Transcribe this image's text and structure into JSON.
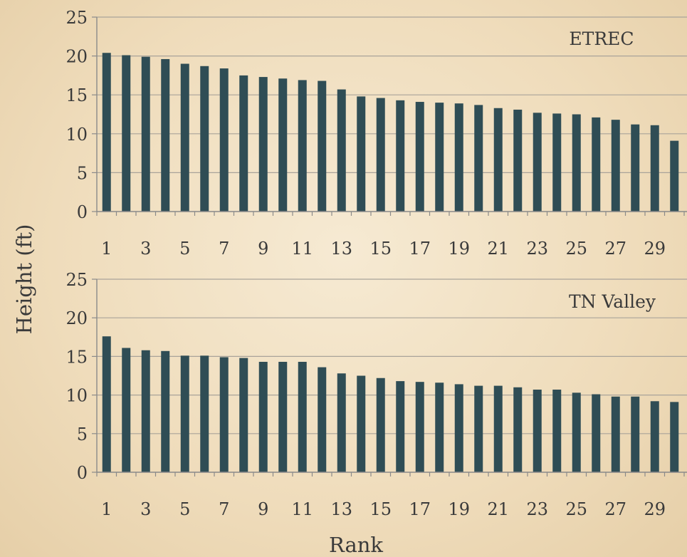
{
  "chart_data": [
    {
      "type": "bar",
      "annotation": "ETREC",
      "categories": [
        1,
        2,
        3,
        4,
        5,
        6,
        7,
        8,
        9,
        10,
        11,
        12,
        13,
        14,
        15,
        16,
        17,
        18,
        19,
        20,
        21,
        22,
        23,
        24,
        25,
        26,
        27,
        28,
        29,
        30
      ],
      "values": [
        20.4,
        20.1,
        19.9,
        19.6,
        19.0,
        18.7,
        18.4,
        17.5,
        17.3,
        17.1,
        16.9,
        16.8,
        15.7,
        14.8,
        14.6,
        14.3,
        14.1,
        14.0,
        13.9,
        13.7,
        13.3,
        13.1,
        12.7,
        12.6,
        12.5,
        12.1,
        11.8,
        11.2,
        11.1,
        9.1
      ],
      "xtick_labels": [
        "1",
        "3",
        "5",
        "7",
        "9",
        "11",
        "13",
        "15",
        "17",
        "19",
        "21",
        "23",
        "25",
        "27",
        "29"
      ],
      "yticks": [
        0,
        5,
        10,
        15,
        20,
        25
      ],
      "ylim": [
        0,
        25
      ],
      "grid": true,
      "bar_color": "#2f4d55"
    },
    {
      "type": "bar",
      "annotation": "TN Valley",
      "categories": [
        1,
        2,
        3,
        4,
        5,
        6,
        7,
        8,
        9,
        10,
        11,
        12,
        13,
        14,
        15,
        16,
        17,
        18,
        19,
        20,
        21,
        22,
        23,
        24,
        25,
        26,
        27,
        28,
        29,
        30
      ],
      "values": [
        17.6,
        16.1,
        15.8,
        15.7,
        15.1,
        15.1,
        14.9,
        14.8,
        14.3,
        14.3,
        14.3,
        13.6,
        12.8,
        12.5,
        12.2,
        11.8,
        11.7,
        11.6,
        11.4,
        11.2,
        11.2,
        11.0,
        10.7,
        10.7,
        10.3,
        10.1,
        9.8,
        9.8,
        9.2,
        9.1
      ],
      "xtick_labels": [
        "1",
        "3",
        "5",
        "7",
        "9",
        "11",
        "13",
        "15",
        "17",
        "19",
        "21",
        "23",
        "25",
        "27",
        "29"
      ],
      "yticks": [
        0,
        5,
        10,
        15,
        20,
        25
      ],
      "ylim": [
        0,
        25
      ],
      "grid": true,
      "bar_color": "#2f4d55"
    }
  ],
  "labels": {
    "ylabel": "Height (ft)",
    "xlabel": "Rank"
  }
}
